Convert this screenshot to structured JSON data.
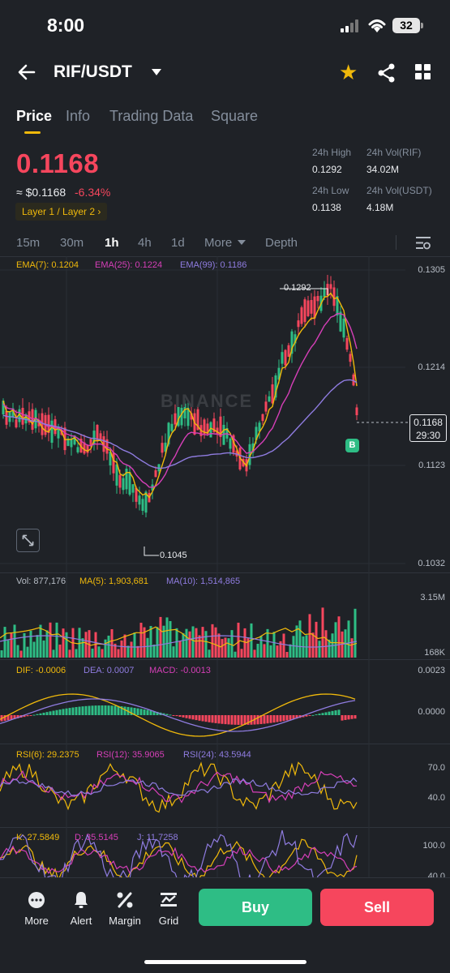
{
  "status": {
    "time": "8:00",
    "battery": "32"
  },
  "header": {
    "pair": "RIF/USDT"
  },
  "tabs": [
    "Price",
    "Info",
    "Trading Data",
    "Square"
  ],
  "price": {
    "last": "0.1168",
    "fiat": "≈ $0.1168",
    "change": "-6.34%",
    "tag": "Layer 1 / Layer 2",
    "high_label": "24h High",
    "high": "0.1292",
    "vol_rif_label": "24h Vol(RIF)",
    "vol_rif": "34.02M",
    "low_label": "24h Low",
    "low": "0.1138",
    "vol_usdt_label": "24h Vol(USDT)",
    "vol_usdt": "4.18M"
  },
  "intervals": [
    "15m",
    "30m",
    "1h",
    "4h",
    "1d",
    "More",
    "Depth"
  ],
  "active_interval": "1h",
  "chart": {
    "ema7": "EMA(7): 0.1204",
    "ema25": "EMA(25): 0.1224",
    "ema99": "EMA(99): 0.1186",
    "axis": [
      "0.1305",
      "0.1214",
      "0.1123",
      "0.1032"
    ],
    "high_marker": "0.1292",
    "low_marker": "0.1045",
    "current_price": "0.1168",
    "countdown": "29:30",
    "signal_badge": "B",
    "watermark": "BINANCE"
  },
  "volume": {
    "vol": "Vol: 877,176",
    "ma5": "MA(5): 1,903,681",
    "ma10": "MA(10): 1,514,865",
    "axis_top": "3.15M",
    "axis_bottom": "168K"
  },
  "macd": {
    "dif": "DIF: -0.0006",
    "dea": "DEA: 0.0007",
    "macd": "MACD: -0.0013",
    "axis_top": "0.0023",
    "axis_mid": "0.0000"
  },
  "rsi": {
    "rsi6": "RSI(6): 29.2375",
    "rsi12": "RSI(12): 35.9065",
    "rsi24": "RSI(24): 43.5944",
    "axis_top": "70.0",
    "axis_mid": "40.0"
  },
  "kdj": {
    "k": "K: 27.5849",
    "d": "D: 35.5145",
    "j": "J: 11.7258",
    "axis_top": "100.0",
    "axis_mid": "40.0"
  },
  "nav": [
    "More",
    "Alert",
    "Margin",
    "Grid"
  ],
  "actions": {
    "buy": "Buy",
    "sell": "Sell"
  },
  "colors": {
    "up": "#2ebd85",
    "down": "#f6465d",
    "accent": "#f0b90b",
    "ema7": "#f0b90b",
    "ema25": "#d63fb8",
    "ema99": "#8f7ce0"
  }
}
